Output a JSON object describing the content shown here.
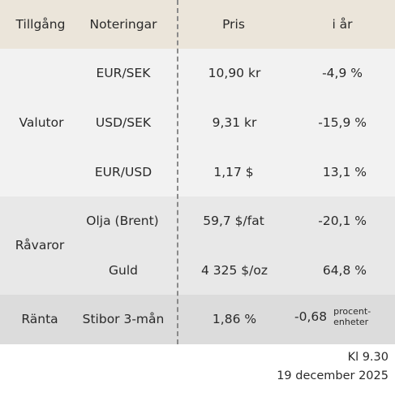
{
  "headers": {
    "asset": "Tillgång",
    "listing": "Noteringar",
    "price": "Pris",
    "ytd": "i år"
  },
  "groups": {
    "valutor": "Valutor",
    "ravaror": "Råvaror",
    "ranta": "Ränta"
  },
  "rows": [
    {
      "listing": "EUR/SEK",
      "price": "10,90 kr",
      "ytd": "-4,9 %"
    },
    {
      "listing": "USD/SEK",
      "price": "9,31 kr",
      "ytd": "-15,9 %"
    },
    {
      "listing": "EUR/USD",
      "price": "1,17 $",
      "ytd": "13,1 %"
    },
    {
      "listing": "Olja (Brent)",
      "price": "59,7 $/fat",
      "ytd": "-20,1 %"
    },
    {
      "listing": "Guld",
      "price": "4 325 $/oz",
      "ytd": "64,8 %"
    },
    {
      "listing": "Stibor 3-mån",
      "price": "1,86 %",
      "ytd": "-0,68",
      "ytd_unit_1": "procent-",
      "ytd_unit_2": "enheter"
    }
  ],
  "footer": {
    "time": "Kl 9.30",
    "date": "19 december 2025"
  },
  "colors": {
    "header_bg": "#ebe5da",
    "valutor_bg": "#f2f2f2",
    "ravaror_bg": "#e8e8e8",
    "ranta_bg": "#dcdcdc"
  }
}
